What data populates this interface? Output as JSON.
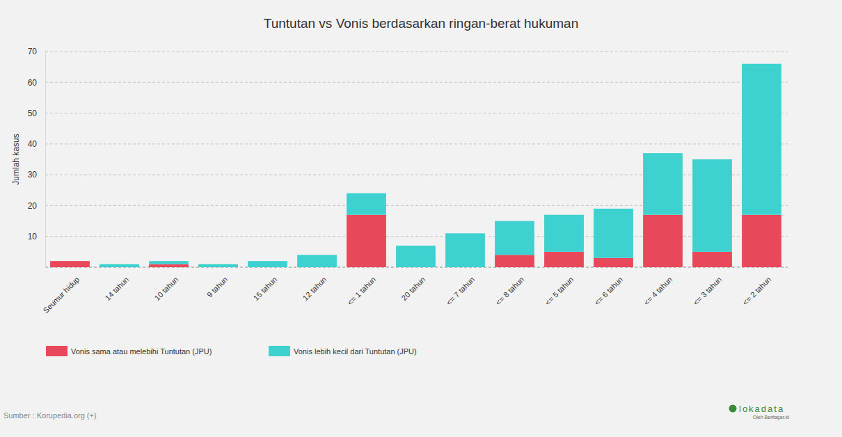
{
  "chart_data": {
    "type": "bar",
    "stacked": true,
    "grid": true,
    "legend": "bottom",
    "title": "Tuntutan vs Vonis berdasarkan ringan-berat hukuman",
    "y_label": "Jumlah kasus",
    "source": "Sumber : Korupedia.org (+)",
    "logo": "lokadata",
    "logo_subtitle": "Oleh Beritagar.id",
    "categories": [
      "Seumur hidup",
      "14 tahun",
      "10 tahun",
      "9 tahun",
      "15 tahun",
      "12 tahun",
      "<= 1 tahun",
      "20 tahun",
      "<= 7 tahun",
      "<= 8 tahun",
      "<= 5 tahun",
      "<= 6 tahun",
      "<= 4 tahun",
      "<= 3 tahun",
      "<= 2 tahun"
    ],
    "series": [
      {
        "name": "Vonis sama atau melebihi Tuntutan (JPU)",
        "color": "#e8485a",
        "values": [
          2,
          0,
          1,
          0,
          0,
          0,
          17,
          0,
          0,
          4,
          5,
          3,
          17,
          5,
          17
        ]
      },
      {
        "name": "Vonis lebih kecil dari Tuntutan (JPU)",
        "color": "#3dd2d0",
        "values": [
          0,
          1,
          1,
          1,
          2,
          4,
          7,
          7,
          11,
          11,
          12,
          16,
          20,
          30,
          49
        ]
      }
    ],
    "ylim": [
      0,
      70
    ],
    "yticks": [
      10,
      20,
      30,
      40,
      50,
      60,
      70
    ]
  }
}
